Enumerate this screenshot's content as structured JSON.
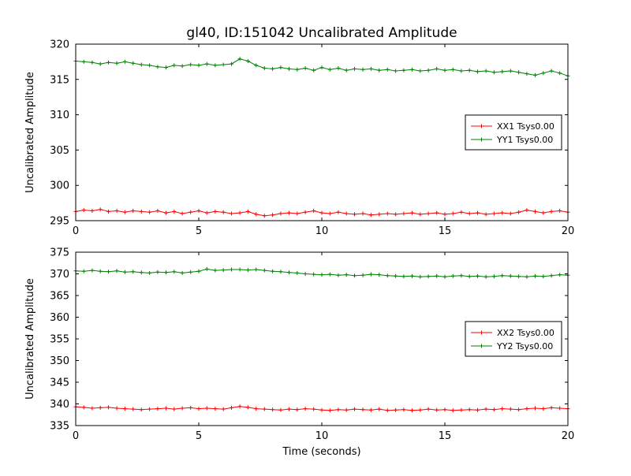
{
  "figure": {
    "title": "gl40, ID:151042 Uncalibrated Amplitude",
    "background": "#ffffff",
    "axis_color": "#000000"
  },
  "chart_data": [
    {
      "type": "line",
      "ylabel": "Uncalibrated Amplitude",
      "xlabel": "",
      "xlim": [
        0,
        20
      ],
      "ylim": [
        295,
        320
      ],
      "xticks": [
        0,
        5,
        10,
        15,
        20
      ],
      "yticks": [
        295,
        300,
        305,
        310,
        315,
        320
      ],
      "grid": false,
      "legend_position": "center right",
      "x": [
        0,
        0.33,
        0.67,
        1,
        1.33,
        1.67,
        2,
        2.33,
        2.67,
        3,
        3.33,
        3.67,
        4,
        4.33,
        4.67,
        5,
        5.33,
        5.67,
        6,
        6.33,
        6.67,
        7,
        7.33,
        7.67,
        8,
        8.33,
        8.67,
        9,
        9.33,
        9.67,
        10,
        10.33,
        10.67,
        11,
        11.33,
        11.67,
        12,
        12.33,
        12.67,
        13,
        13.33,
        13.67,
        14,
        14.33,
        14.67,
        15,
        15.33,
        15.67,
        16,
        16.33,
        16.67,
        17,
        17.33,
        17.67,
        18,
        18.33,
        18.67,
        19,
        19.33,
        19.67,
        20
      ],
      "series": [
        {
          "name": "XX1 Tsys0.00",
          "color": "#ff0000",
          "marker": "plus",
          "values": [
            296.3,
            296.5,
            296.4,
            296.6,
            296.3,
            296.4,
            296.2,
            296.4,
            296.3,
            296.2,
            296.4,
            296.1,
            296.3,
            296.0,
            296.2,
            296.4,
            296.1,
            296.3,
            296.2,
            296.0,
            296.1,
            296.3,
            295.9,
            295.7,
            295.8,
            296.0,
            296.1,
            296.0,
            296.2,
            296.4,
            296.1,
            296.0,
            296.2,
            296.0,
            295.9,
            296.0,
            295.8,
            295.9,
            296.0,
            295.9,
            296.0,
            296.1,
            295.9,
            296.0,
            296.1,
            295.9,
            296.0,
            296.2,
            296.0,
            296.1,
            295.9,
            296.0,
            296.1,
            296.0,
            296.2,
            296.5,
            296.3,
            296.1,
            296.3,
            296.4,
            296.2
          ]
        },
        {
          "name": "YY1 Tsys0.00",
          "color": "#008000",
          "marker": "plus",
          "values": [
            317.6,
            317.5,
            317.4,
            317.2,
            317.4,
            317.3,
            317.5,
            317.3,
            317.1,
            317.0,
            316.8,
            316.7,
            317.0,
            316.9,
            317.1,
            317.0,
            317.2,
            317.0,
            317.1,
            317.2,
            317.9,
            317.6,
            317.0,
            316.6,
            316.5,
            316.7,
            316.5,
            316.4,
            316.6,
            316.3,
            316.7,
            316.4,
            316.6,
            316.3,
            316.5,
            316.4,
            316.5,
            316.3,
            316.4,
            316.2,
            316.3,
            316.4,
            316.2,
            316.3,
            316.5,
            316.3,
            316.4,
            316.2,
            316.3,
            316.1,
            316.2,
            316.0,
            316.1,
            316.2,
            316.0,
            315.8,
            315.6,
            315.9,
            316.2,
            315.9,
            315.5
          ]
        }
      ]
    },
    {
      "type": "line",
      "ylabel": "Uncalibrated Amplitude",
      "xlabel": "Time (seconds)",
      "xlim": [
        0,
        20
      ],
      "ylim": [
        335,
        375
      ],
      "xticks": [
        0,
        5,
        10,
        15,
        20
      ],
      "yticks": [
        335,
        340,
        345,
        350,
        355,
        360,
        365,
        370,
        375
      ],
      "grid": false,
      "legend_position": "center right",
      "x": [
        0,
        0.33,
        0.67,
        1,
        1.33,
        1.67,
        2,
        2.33,
        2.67,
        3,
        3.33,
        3.67,
        4,
        4.33,
        4.67,
        5,
        5.33,
        5.67,
        6,
        6.33,
        6.67,
        7,
        7.33,
        7.67,
        8,
        8.33,
        8.67,
        9,
        9.33,
        9.67,
        10,
        10.33,
        10.67,
        11,
        11.33,
        11.67,
        12,
        12.33,
        12.67,
        13,
        13.33,
        13.67,
        14,
        14.33,
        14.67,
        15,
        15.33,
        15.67,
        16,
        16.33,
        16.67,
        17,
        17.33,
        17.67,
        18,
        18.33,
        18.67,
        19,
        19.33,
        19.67,
        20
      ],
      "series": [
        {
          "name": "XX2 Tsys0.00",
          "color": "#ff0000",
          "marker": "plus",
          "values": [
            339.3,
            339.2,
            339.0,
            339.1,
            339.2,
            339.0,
            338.9,
            338.8,
            338.7,
            338.8,
            338.9,
            339.0,
            338.8,
            339.0,
            339.1,
            338.9,
            339.0,
            338.9,
            338.8,
            339.1,
            339.4,
            339.2,
            338.9,
            338.8,
            338.7,
            338.6,
            338.8,
            338.7,
            338.9,
            338.8,
            338.6,
            338.5,
            338.7,
            338.6,
            338.8,
            338.7,
            338.6,
            338.8,
            338.5,
            338.6,
            338.7,
            338.5,
            338.6,
            338.8,
            338.6,
            338.7,
            338.5,
            338.6,
            338.7,
            338.6,
            338.8,
            338.7,
            338.9,
            338.8,
            338.7,
            338.9,
            339.0,
            338.9,
            339.1,
            339.0,
            338.9
          ]
        },
        {
          "name": "YY2 Tsys0.00",
          "color": "#008000",
          "marker": "plus",
          "values": [
            370.7,
            370.6,
            370.8,
            370.6,
            370.5,
            370.7,
            370.4,
            370.5,
            370.3,
            370.2,
            370.4,
            370.3,
            370.5,
            370.2,
            370.4,
            370.6,
            371.1,
            370.8,
            370.9,
            371.0,
            371.0,
            370.9,
            371.0,
            370.8,
            370.6,
            370.5,
            370.3,
            370.2,
            370.0,
            369.9,
            369.8,
            369.9,
            369.7,
            369.8,
            369.6,
            369.7,
            369.9,
            369.8,
            369.6,
            369.5,
            369.4,
            369.5,
            369.3,
            369.4,
            369.5,
            369.3,
            369.5,
            369.6,
            369.4,
            369.5,
            369.3,
            369.4,
            369.6,
            369.5,
            369.4,
            369.3,
            369.5,
            369.4,
            369.6,
            369.8,
            369.7
          ]
        }
      ]
    }
  ]
}
